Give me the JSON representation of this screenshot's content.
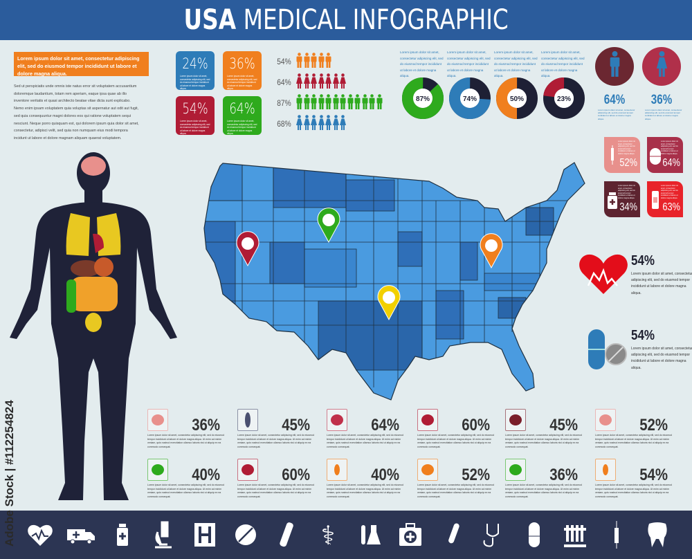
{
  "header": {
    "title_bold": "USA",
    "title_rest": "MEDICAL INFOGRAPHIC",
    "color": "#2b5c9c"
  },
  "intro": {
    "banner": "Lorem ipsum dolor sit amet, consectetur adipiscing elit, sed do eiusmod tempor incididunt ut labore et dolore magna aliqua.",
    "paragraph": "Sed ut perspiciatis unde omnis iste natus error sit voluptatem accusantium doloremque laudantium, totam rem aperiam, eaque ipsa quae ab illo inventore veritatis et quasi architecto beatae vitae dicta sunt explicabo. Nemo enim ipsam voluptatem quia voluptas sit aspernatur aut odit aut fugit, sed quia consequuntur magni dolores eos qui ratione voluptatem sequi nesciunt. Neque porro quisquam est, qui dolorem ipsum quia dolor sit amet, consectetur, adipisci velit, sed quia non numquam eius modi tempora incidunt ut labore et dolore magnam aliquam quaerat voluptatem."
  },
  "lorem_short": "Lorem ipsum dolor sit amet, consectetur adipiscing elit, sed do eiusmod tempor incididunt ut labore et dolore magna aliqua.",
  "lorem_long": "Lorem ipsum dolor sit amet, consectetur adipiscing elit, sed do eiusmod tempor incididunt ut labore et dolore magna aliqua. Ut enim ad minim veniam, quis nostrud exercitation ullamco laboris nisi ut aliquip ex ea commodo consequat.",
  "stat_boxes": [
    {
      "value": "24%",
      "color": "#2e7cb8"
    },
    {
      "value": "36%",
      "color": "#f07f1e"
    },
    {
      "value": "54%",
      "color": "#b01c35"
    },
    {
      "value": "64%",
      "color": "#2eaa1d"
    }
  ],
  "people_rows": [
    {
      "label": "54%",
      "icon": "man-icon",
      "count": 5,
      "color": "#f07f1e"
    },
    {
      "label": "64%",
      "icon": "woman-icon",
      "count": 7,
      "color": "#b01c35"
    },
    {
      "label": "87%",
      "icon": "man-icon",
      "count": 12,
      "color": "#2eaa1d"
    },
    {
      "label": "68%",
      "icon": "woman-icon",
      "count": 7,
      "color": "#2e7cb8"
    }
  ],
  "donuts": [
    {
      "label": "87%",
      "value": 87,
      "color": "#2eaa1d"
    },
    {
      "label": "74%",
      "value": 74,
      "color": "#2e7cb8"
    },
    {
      "label": "50%",
      "value": 50,
      "color": "#f07f1e"
    },
    {
      "label": "23%",
      "value": 23,
      "color": "#b01c35"
    }
  ],
  "donut_rest_color": "#1e2035",
  "gender": [
    {
      "icon": "man-icon",
      "value": "64%",
      "circle_color": "#6b2731"
    },
    {
      "icon": "woman-icon",
      "value": "36%",
      "circle_color": "#b0304a"
    }
  ],
  "right_boxes": [
    {
      "icon": "syringe-icon",
      "value": "52%",
      "color": "#e8908c"
    },
    {
      "icon": "capsule-icon",
      "value": "64%",
      "color": "#a8304a"
    },
    {
      "icon": "medicine-bottle-icon",
      "value": "34%",
      "color": "#5d2430"
    },
    {
      "icon": "bandage-icon",
      "value": "63%",
      "color": "#e8232a"
    }
  ],
  "heart_stat": {
    "value": "54%"
  },
  "pill_stat": {
    "value": "54%"
  },
  "map_pins": [
    {
      "color": "#b01c35"
    },
    {
      "color": "#2eaa1d"
    },
    {
      "color": "#f2d000"
    },
    {
      "color": "#f07f1e"
    }
  ],
  "organs": [
    {
      "organ": "brain-icon",
      "value": "36%",
      "color": "#e8908c"
    },
    {
      "organ": "spine-icon",
      "value": "45%",
      "color": "#4a5070"
    },
    {
      "organ": "lungs-icon",
      "value": "64%",
      "color": "#c0304a"
    },
    {
      "organ": "kidney-icon",
      "value": "60%",
      "color": "#b01c35"
    },
    {
      "organ": "liver-icon",
      "value": "45%",
      "color": "#7a1e2a"
    },
    {
      "organ": "intestine-icon",
      "value": "52%",
      "color": "#e8908c"
    },
    {
      "organ": "kidneys-icon",
      "value": "40%",
      "color": "#2eaa1d"
    },
    {
      "organ": "heart-icon",
      "value": "60%",
      "color": "#b01c35"
    },
    {
      "organ": "male-reproductive-icon",
      "value": "40%",
      "color": "#f07f1e"
    },
    {
      "organ": "stomach-icon",
      "value": "52%",
      "color": "#f07f1e"
    },
    {
      "organ": "bladder-icon",
      "value": "36%",
      "color": "#2eaa1d"
    },
    {
      "organ": "uterus-icon",
      "value": "54%",
      "color": "#f07f1e"
    }
  ],
  "footer_icons": [
    "heart-pulse-icon",
    "ambulance-icon",
    "medicine-bottle-icon",
    "microscope-icon",
    "hospital-sign-icon",
    "pill-tablet-icon",
    "bandage-icon",
    "caduceus-icon",
    "flasks-icon",
    "first-aid-kit-icon",
    "thermometer-icon",
    "stethoscope-icon",
    "capsule-icon",
    "test-tubes-icon",
    "syringe-icon",
    "tooth-icon"
  ],
  "watermark": "Adobe Stock | #112254824"
}
